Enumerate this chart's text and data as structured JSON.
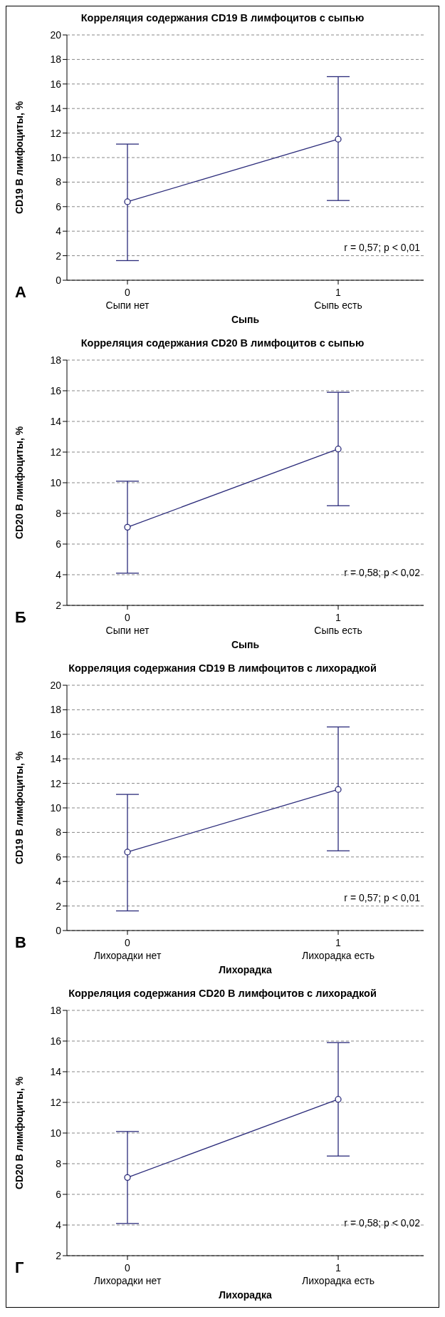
{
  "chart_data": [
    {
      "type": "line",
      "title": "Корреляция содержания CD19 В лимфоцитов с сыпью",
      "categories": [
        "0",
        "1"
      ],
      "xlabel": "Сыпь",
      "ylabel": "CD19 В лимфоциты, %",
      "ylim": [
        0,
        20
      ],
      "yticks": [
        0,
        2,
        4,
        6,
        8,
        10,
        12,
        14,
        16,
        18,
        20
      ],
      "grid": "y",
      "marker": "circle",
      "series": [
        {
          "color": "#2b2b7a",
          "values": [
            6.4,
            11.5
          ],
          "errors": [
            [
              1.6,
              11.1
            ],
            [
              6.5,
              16.6
            ]
          ]
        }
      ],
      "annotations": [
        "А",
        "r = 0,57; p < 0,01",
        "Сыпи нет",
        "Сыпь есть"
      ]
    },
    {
      "type": "line",
      "title": "Корреляция содержания CD20 В лимфоцитов с сыпью",
      "categories": [
        "0",
        "1"
      ],
      "xlabel": "Сыпь",
      "ylabel": "CD20 В лимфоциты, %",
      "ylim": [
        2,
        18
      ],
      "yticks": [
        2,
        4,
        6,
        8,
        10,
        12,
        14,
        16,
        18
      ],
      "grid": "y",
      "marker": "circle",
      "series": [
        {
          "color": "#2b2b7a",
          "values": [
            7.1,
            12.2
          ],
          "errors": [
            [
              4.1,
              10.1
            ],
            [
              8.5,
              15.9
            ]
          ]
        }
      ],
      "annotations": [
        "Б",
        "r = 0,58; p < 0,02",
        "Сыпи нет",
        "Сыпь есть"
      ]
    },
    {
      "type": "line",
      "title": "Корреляция содержания CD19 В лимфоцитов с лихорадкой",
      "categories": [
        "0",
        "1"
      ],
      "xlabel": "Лихорадка",
      "ylabel": "CD19 В лимфоциты, %",
      "ylim": [
        0,
        20
      ],
      "yticks": [
        0,
        2,
        4,
        6,
        8,
        10,
        12,
        14,
        16,
        18,
        20
      ],
      "grid": "y",
      "marker": "circle",
      "series": [
        {
          "color": "#2b2b7a",
          "values": [
            6.4,
            11.5
          ],
          "errors": [
            [
              1.6,
              11.1
            ],
            [
              6.5,
              16.6
            ]
          ]
        }
      ],
      "annotations": [
        "В",
        "r = 0,57; p < 0,01",
        "Лихорадки нет",
        "Лихорадка есть"
      ]
    },
    {
      "type": "line",
      "title": "Корреляция содержания CD20 В лимфоцитов с лихорадкой",
      "categories": [
        "0",
        "1"
      ],
      "xlabel": "Лихорадка",
      "ylabel": "CD20 В лимфоциты, %",
      "ylim": [
        2,
        18
      ],
      "yticks": [
        2,
        4,
        6,
        8,
        10,
        12,
        14,
        16,
        18
      ],
      "grid": "y",
      "marker": "circle",
      "series": [
        {
          "color": "#2b2b7a",
          "values": [
            7.1,
            12.2
          ],
          "errors": [
            [
              4.1,
              10.1
            ],
            [
              8.5,
              15.9
            ]
          ]
        }
      ],
      "annotations": [
        "Г",
        "r = 0,58; p < 0,02",
        "Лихорадки нет",
        "Лихорадка есть"
      ]
    }
  ]
}
